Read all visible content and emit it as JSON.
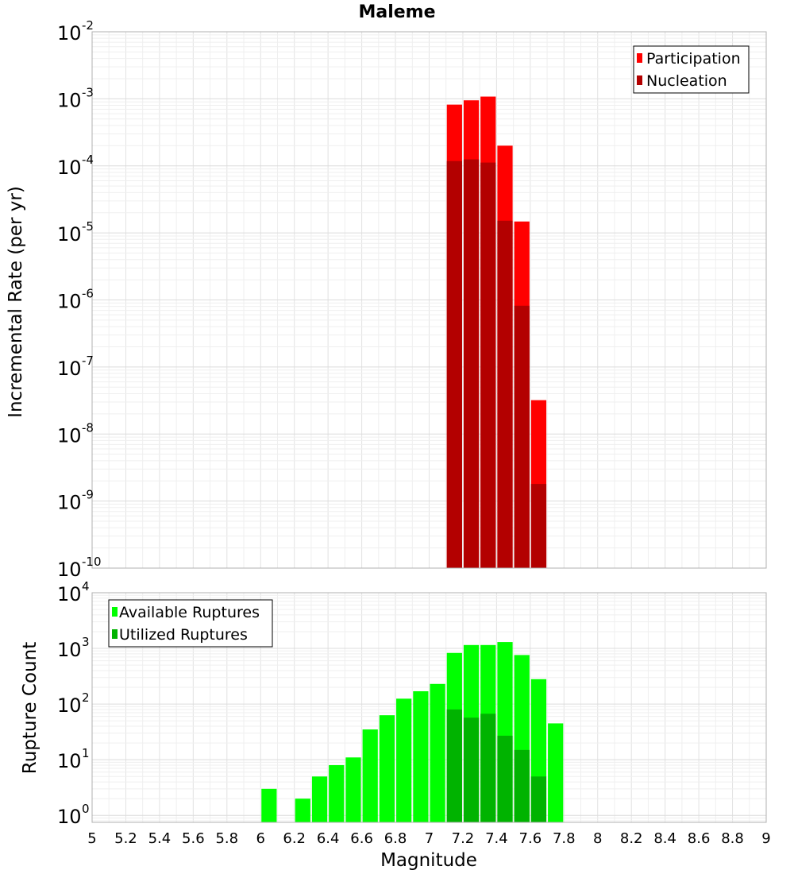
{
  "chart_data": [
    {
      "type": "bar",
      "title": "Maleme",
      "xlabel": "",
      "ylabel": "Incremental Rate (per yr)",
      "yscale": "log",
      "ylim": [
        1e-10,
        0.01
      ],
      "xlim": [
        5,
        9
      ],
      "grid": true,
      "legend_position": "top-right",
      "bin_width": 0.1,
      "y_tick_base": "10",
      "y_tick_exponents": [
        "-10",
        "-9",
        "-8",
        "-7",
        "-6",
        "-5",
        "-4",
        "-3",
        "-2"
      ],
      "series": [
        {
          "name": "Participation",
          "color": "#ff0000",
          "points": [
            {
              "x": 7.15,
              "y": 0.00082
            },
            {
              "x": 7.25,
              "y": 0.00095
            },
            {
              "x": 7.35,
              "y": 0.00108
            },
            {
              "x": 7.45,
              "y": 0.0002
            },
            {
              "x": 7.55,
              "y": 1.48e-05
            },
            {
              "x": 7.65,
              "y": 3.2e-08
            }
          ]
        },
        {
          "name": "Nucleation",
          "color": "#b30000",
          "points": [
            {
              "x": 7.15,
              "y": 0.000118
            },
            {
              "x": 7.25,
              "y": 0.000125
            },
            {
              "x": 7.35,
              "y": 0.000112
            },
            {
              "x": 7.45,
              "y": 1.52e-05
            },
            {
              "x": 7.55,
              "y": 8.2e-07
            },
            {
              "x": 7.65,
              "y": 1.8e-09
            }
          ]
        }
      ]
    },
    {
      "type": "bar",
      "title": "",
      "xlabel": "Magnitude",
      "ylabel": "Rupture Count",
      "yscale": "log",
      "ylim": [
        0.75,
        10000
      ],
      "xlim": [
        5,
        9
      ],
      "grid": true,
      "legend_position": "top-left",
      "bin_width": 0.1,
      "x_ticks": [
        "5",
        "5.2",
        "5.4",
        "5.6",
        "5.8",
        "6",
        "6.2",
        "6.4",
        "6.6",
        "6.8",
        "7",
        "7.2",
        "7.4",
        "7.6",
        "7.8",
        "8",
        "8.2",
        "8.4",
        "8.6",
        "8.8",
        "9"
      ],
      "y_tick_base": "10",
      "y_tick_exponents": [
        "0",
        "1",
        "2",
        "3",
        "4"
      ],
      "series": [
        {
          "name": "Available Ruptures",
          "color": "#00ff00",
          "points": [
            {
              "x": 6.05,
              "y": 3
            },
            {
              "x": 6.25,
              "y": 2
            },
            {
              "x": 6.35,
              "y": 5
            },
            {
              "x": 6.45,
              "y": 8
            },
            {
              "x": 6.55,
              "y": 11
            },
            {
              "x": 6.65,
              "y": 35
            },
            {
              "x": 6.75,
              "y": 63
            },
            {
              "x": 6.85,
              "y": 125
            },
            {
              "x": 6.95,
              "y": 170
            },
            {
              "x": 7.05,
              "y": 230
            },
            {
              "x": 7.15,
              "y": 830
            },
            {
              "x": 7.25,
              "y": 1150
            },
            {
              "x": 7.35,
              "y": 1150
            },
            {
              "x": 7.45,
              "y": 1300
            },
            {
              "x": 7.55,
              "y": 760
            },
            {
              "x": 7.65,
              "y": 280
            },
            {
              "x": 7.75,
              "y": 45
            }
          ]
        },
        {
          "name": "Utilized Ruptures",
          "color": "#00b300",
          "points": [
            {
              "x": 7.15,
              "y": 80
            },
            {
              "x": 7.25,
              "y": 57
            },
            {
              "x": 7.35,
              "y": 67
            },
            {
              "x": 7.45,
              "y": 27
            },
            {
              "x": 7.55,
              "y": 15
            },
            {
              "x": 7.65,
              "y": 5
            }
          ]
        }
      ]
    }
  ]
}
